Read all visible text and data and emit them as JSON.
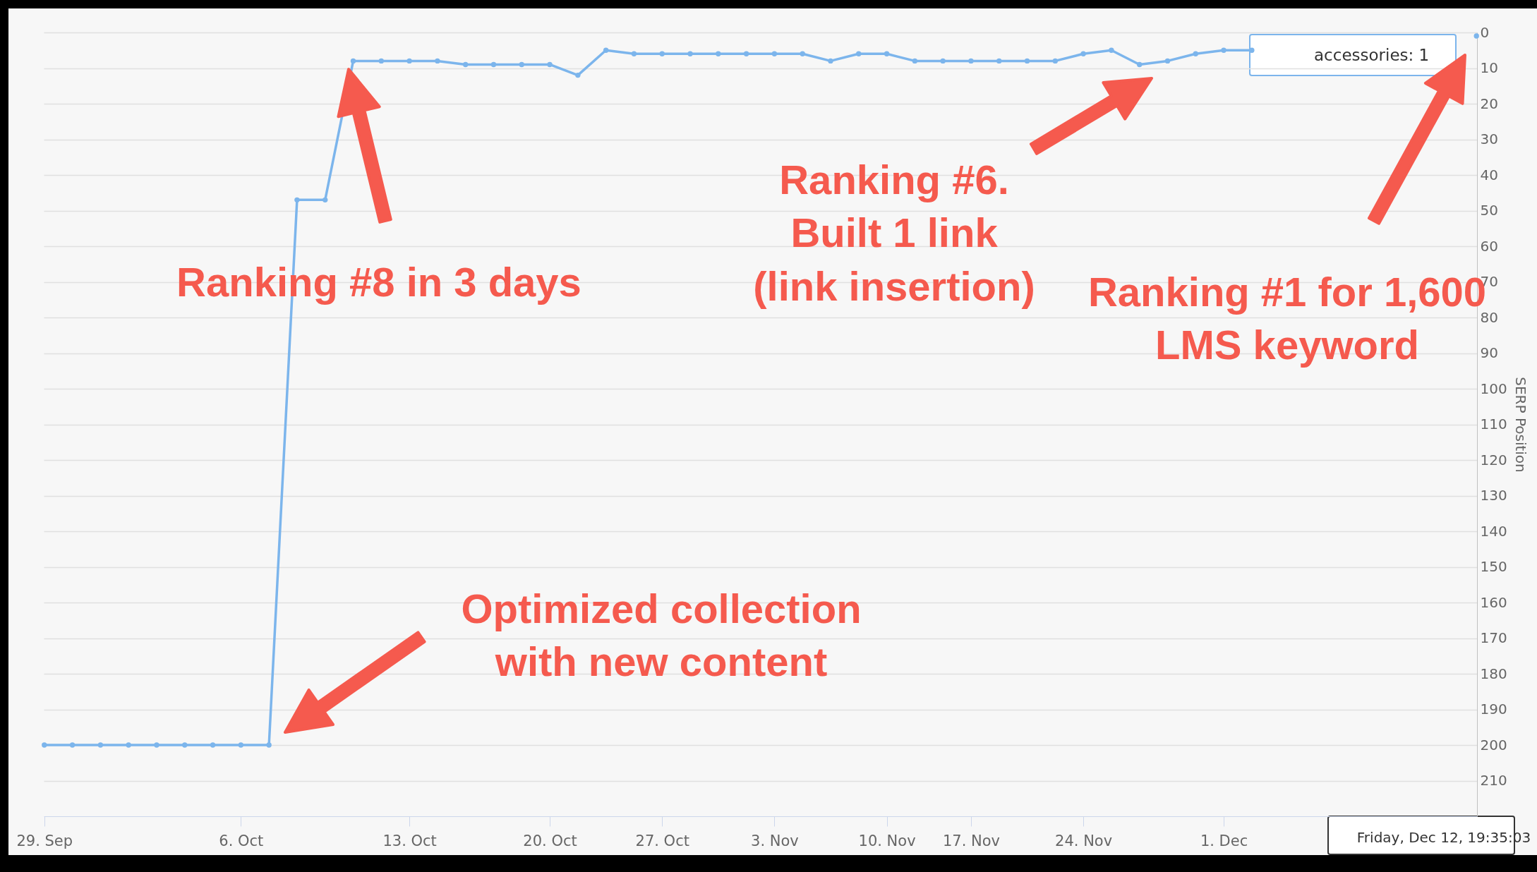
{
  "chart_data": {
    "type": "line",
    "ylabel": "SERP Position",
    "color": "#7cb5ec",
    "marker": "circle",
    "grid": "y",
    "ylim": [
      220,
      0
    ],
    "yticks": [
      0,
      10,
      20,
      30,
      40,
      50,
      60,
      70,
      80,
      90,
      100,
      110,
      120,
      130,
      140,
      150,
      160,
      170,
      180,
      190,
      200,
      210
    ],
    "categories": [
      "29. Sep",
      null,
      null,
      null,
      null,
      null,
      null,
      "6. Oct",
      null,
      null,
      null,
      null,
      null,
      "13. Oct",
      null,
      null,
      null,
      null,
      "20. Oct",
      null,
      null,
      null,
      "27. Oct",
      null,
      null,
      null,
      "3. Nov",
      null,
      null,
      null,
      "10. Nov",
      null,
      null,
      "17. Nov",
      null,
      null,
      null,
      "24. Nov",
      null,
      null,
      null,
      null,
      "1. Dec",
      null,
      null,
      null,
      null,
      null,
      null,
      null,
      null,
      null
    ],
    "values": [
      200,
      200,
      200,
      200,
      200,
      200,
      200,
      200,
      200,
      47,
      47,
      8,
      8,
      8,
      8,
      9,
      9,
      9,
      9,
      12,
      5,
      6,
      6,
      6,
      6,
      6,
      6,
      6,
      8,
      6,
      6,
      8,
      8,
      8,
      8,
      8,
      8,
      6,
      5,
      9,
      8,
      6,
      5,
      5,
      null,
      null,
      null,
      null,
      null,
      null,
      null,
      1
    ],
    "annotations": [
      "Ranking #8 in 3 days",
      "Optimized collection\nwith new content",
      "Ranking #6.\nBuilt 1 link\n(link insertion)",
      "Ranking #1 for 1,600\nLMS keyword",
      "accessories: 1",
      "Friday, Dec 12, 19:35:03"
    ]
  }
}
